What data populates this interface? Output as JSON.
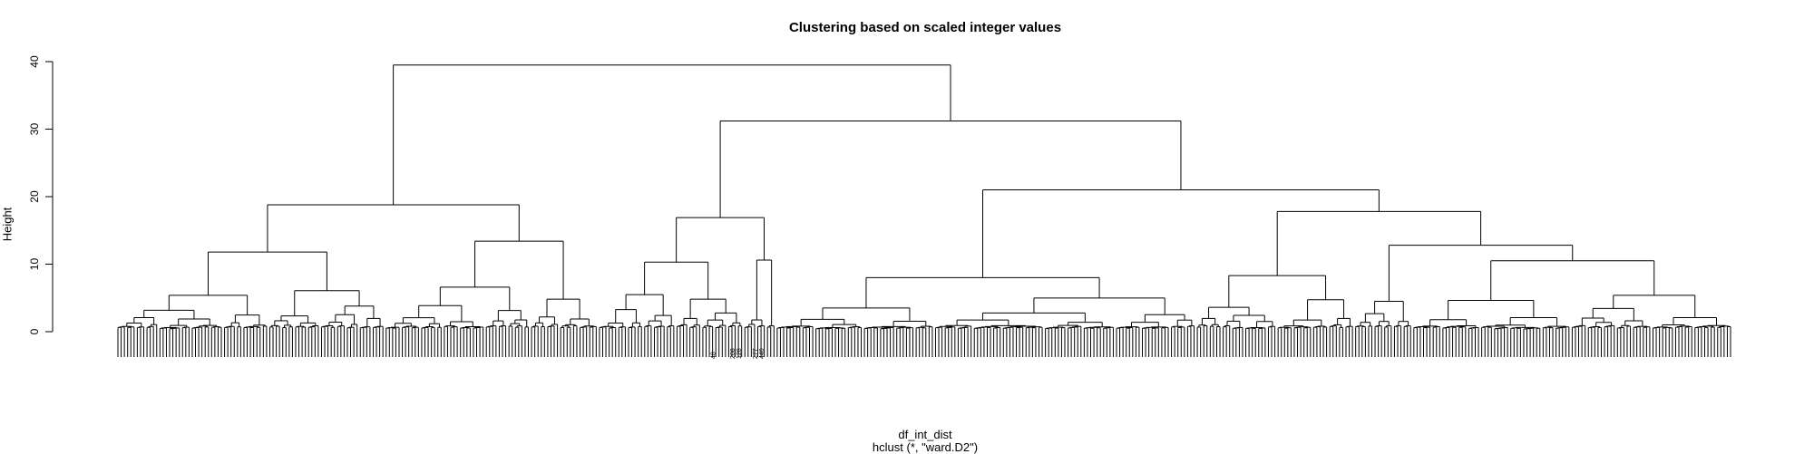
{
  "chart_data": {
    "type": "dendrogram",
    "title": "Clustering based on scaled integer values",
    "ylabel": "Height",
    "xlabel": "df_int_dist",
    "sub": "hclust (*, \"ward.D2\")",
    "ylim": [
      0,
      40
    ],
    "yticks": [
      0,
      10,
      20,
      30,
      40
    ],
    "leaf_count": 500,
    "visible_leaf_labels": [
      "208",
      "48",
      "128",
      "277",
      "440"
    ],
    "merges_top": [
      {
        "height": 39.5,
        "left_group": "A",
        "right_group": "B"
      },
      {
        "height": 31.2,
        "group": "B",
        "children": [
          "B1",
          "B2"
        ]
      },
      {
        "height": 21.0,
        "group": "B2",
        "children": [
          "B2a",
          "B2b"
        ]
      },
      {
        "height": 18.8,
        "group": "A",
        "children": [
          "A1",
          "A2"
        ]
      },
      {
        "height": 17.8,
        "group": "B2b",
        "children": [
          "B2b1",
          "B2b2"
        ]
      },
      {
        "height": 16.9,
        "group": "B1",
        "children": [
          "B1a",
          "B1b"
        ]
      },
      {
        "height": 13.4,
        "group": "A2"
      },
      {
        "height": 12.8,
        "group": "B2b2"
      },
      {
        "height": 11.8,
        "group": "A1"
      },
      {
        "height": 10.6,
        "group": "B1b"
      },
      {
        "height": 10.5,
        "group": "B2b2b"
      },
      {
        "height": 10.3,
        "group": "B1a"
      },
      {
        "height": 8.3,
        "group": "B2b1"
      },
      {
        "height": 8.0,
        "group": "B2a"
      }
    ]
  }
}
